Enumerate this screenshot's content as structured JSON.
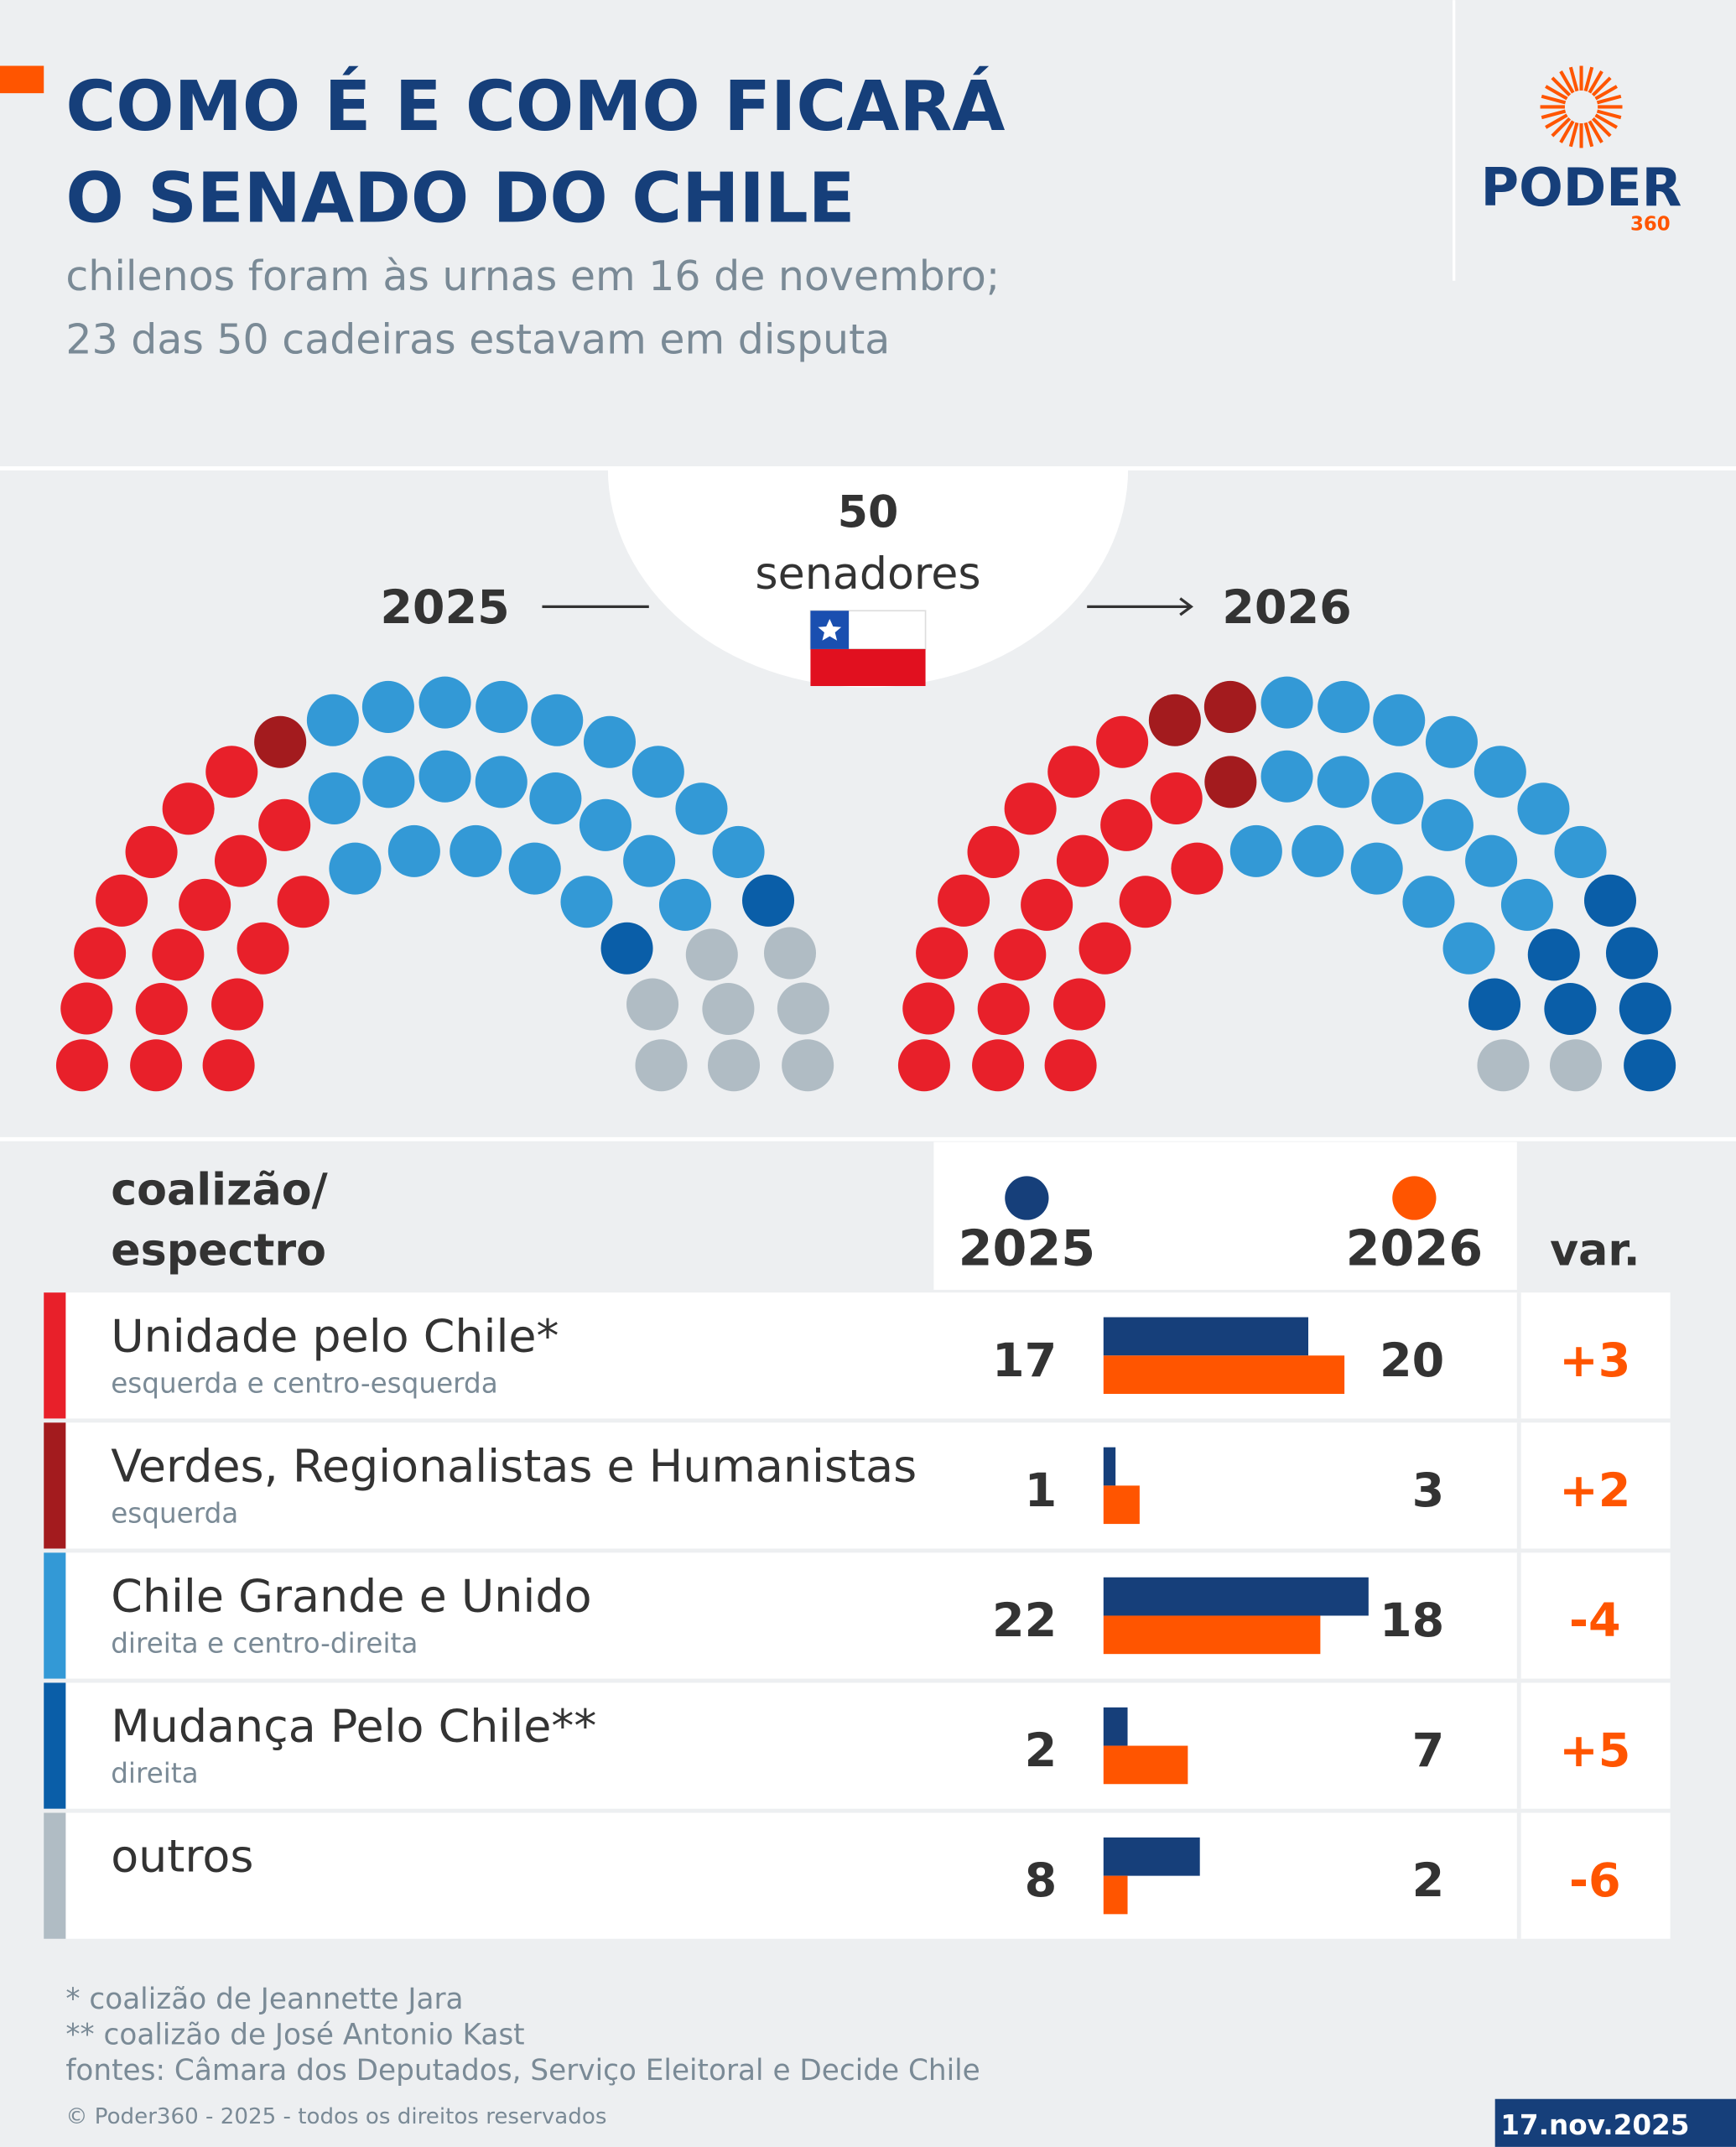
{
  "header": {
    "title": [
      "COMO É E COMO FICARÁ",
      "O SENADO DO CHILE"
    ],
    "subtitle": [
      "chilenos foram às urnas em 16 de novembro;",
      "23 das 50 cadeiras estavam em disputa"
    ]
  },
  "logo": {
    "name": "PODER",
    "number": "360"
  },
  "parliament": {
    "total": "50",
    "total_label": "senadores",
    "year_before": "2025",
    "year_after": "2026"
  },
  "table": {
    "header": {
      "coalition": [
        "coalizão/",
        "espectro"
      ],
      "year_before": "2025",
      "year_after": "2026",
      "change": "var.",
      "color_before": "#163f7a",
      "color_after": "#ff5500"
    },
    "rows": [
      {
        "name": "Unidade pelo Chile*",
        "description": "esquerda e centro-esquerda",
        "color": "#e8202a",
        "seats_2025": 17,
        "seats_2026": 20,
        "change": "+3"
      },
      {
        "name": "Verdes, Regionalistas e Humanistas",
        "description": "esquerda",
        "color": "#a31b1e",
        "seats_2025": 1,
        "seats_2026": 3,
        "change": "+2"
      },
      {
        "name": "Chile Grande e Unido",
        "description": "direita e centro-direita",
        "color": "#3399d6",
        "seats_2025": 22,
        "seats_2026": 18,
        "change": "-4"
      },
      {
        "name": "Mudança Pelo Chile**",
        "description": "direita",
        "color": "#0a5ea8",
        "seats_2025": 2,
        "seats_2026": 7,
        "change": "+5"
      },
      {
        "name": "outros",
        "color": "#b0bcc4",
        "seats_2025": 8,
        "seats_2026": 2,
        "change": "-6"
      }
    ]
  },
  "footnotes": [
    "* coalizão de Jeannette Jara",
    "** coalizão de José Antonio Kast",
    "fontes: Câmara dos Deputados, Serviço Eleitoral e Decide Chile"
  ],
  "copyright": "© Poder360 - 2025 - todos os direitos reservados",
  "date": "17.nov.2025"
}
